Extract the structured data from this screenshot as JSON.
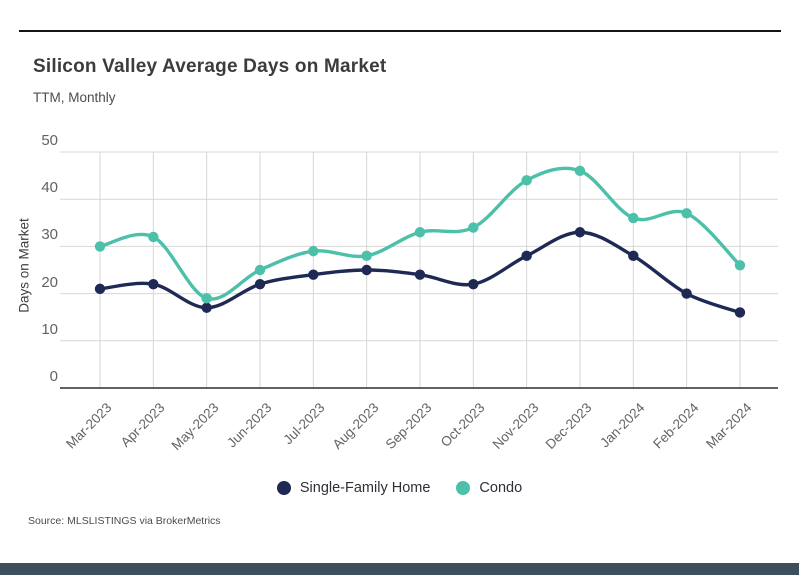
{
  "header": {
    "title": "Silicon Valley Average Days on Market",
    "subtitle": "TTM, Monthly"
  },
  "source": "Source:  MLSLISTINGS via BrokerMetrics",
  "colors": {
    "single_family": "#1f2a54",
    "condo": "#4cc0a9",
    "grid": "#d7d7d7",
    "axis_line": "#2e2e2e",
    "top_rule": "#141414",
    "tick_text": "#636363",
    "bottom_strip": "#3d4f5d"
  },
  "chart_data": {
    "type": "line",
    "title": "Silicon Valley Average Days on Market",
    "subtitle": "TTM, Monthly",
    "xlabel": "",
    "ylabel": "Days on Market",
    "ylim": [
      0,
      50
    ],
    "y_ticks": [
      0,
      10,
      20,
      30,
      40,
      50
    ],
    "grid": true,
    "legend_position": "bottom-center",
    "marker": "circle",
    "line_style": "smooth",
    "categories": [
      "Mar-2023",
      "Apr-2023",
      "May-2023",
      "Jun-2023",
      "Jul-2023",
      "Aug-2023",
      "Sep-2023",
      "Oct-2023",
      "Nov-2023",
      "Dec-2023",
      "Jan-2024",
      "Feb-2024",
      "Mar-2024"
    ],
    "series": [
      {
        "name": "Single-Family Home",
        "color": "#1f2a54",
        "values": [
          21,
          22,
          17,
          22,
          24,
          25,
          24,
          22,
          28,
          33,
          28,
          20,
          16
        ]
      },
      {
        "name": "Condo",
        "color": "#4cc0a9",
        "values": [
          30,
          32,
          19,
          25,
          29,
          28,
          33,
          34,
          44,
          46,
          36,
          37,
          26
        ]
      }
    ]
  }
}
